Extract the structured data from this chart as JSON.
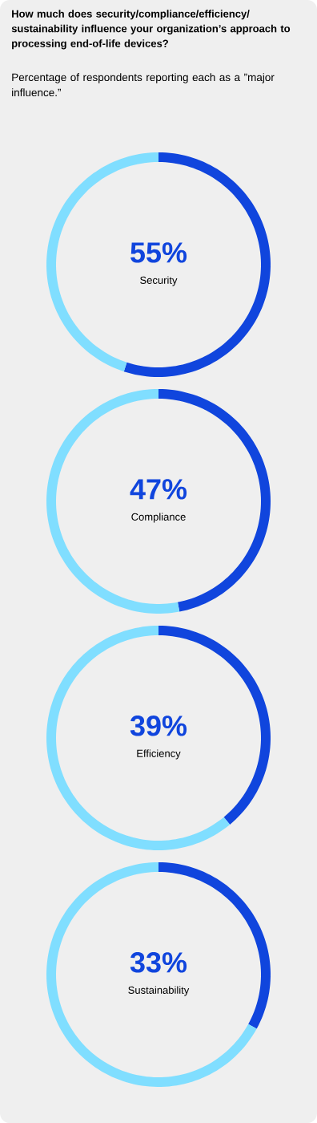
{
  "chart_data": [
    {
      "type": "other",
      "title": "How much does security/compliance/efficiency/ sustainability influence your organization’s approach to processing end-of-life devices?",
      "subtitle": "Percentage of respondents reporting each as a ”major influence.”"
    },
    {
      "type": "donut",
      "title": "Security",
      "categories": [
        null,
        null
      ],
      "values": [
        55,
        45
      ],
      "colors": [
        "#1045dd",
        "#80deff"
      ],
      "value_labels": [
        "55%",
        null
      ]
    },
    {
      "type": "donut",
      "title": "Compliance",
      "categories": [
        null,
        null
      ],
      "values": [
        47,
        53
      ],
      "colors": [
        "#1045dd",
        "#80deff"
      ],
      "value_labels": [
        "47%",
        null
      ]
    },
    {
      "type": "donut",
      "title": "Efficiency",
      "categories": [
        null,
        null
      ],
      "values": [
        39,
        61
      ],
      "colors": [
        "#1045dd",
        "#80deff"
      ],
      "value_labels": [
        "39%",
        null
      ]
    },
    {
      "type": "donut",
      "title": "Sustainability",
      "categories": [
        null,
        null
      ],
      "values": [
        33,
        67
      ],
      "colors": [
        "#1045dd",
        "#80deff"
      ],
      "value_labels": [
        "33%",
        null
      ]
    }
  ]
}
